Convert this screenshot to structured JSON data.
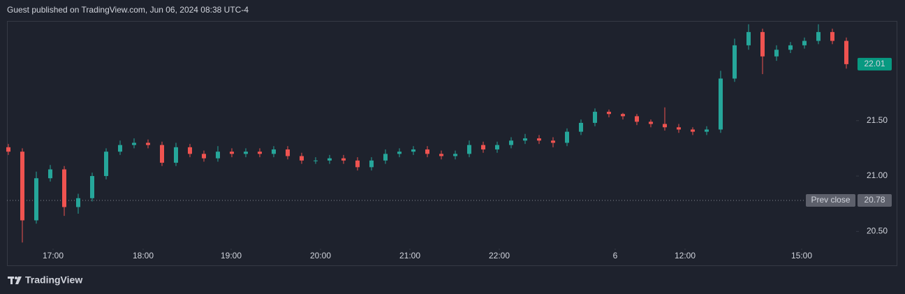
{
  "chart_data": {
    "type": "candlestick",
    "title": "Guest published on TradingView.com, Jun 06, 2024 08:38 UTC-4",
    "brand": "TradingView",
    "up_color": "#26a69a",
    "down_color": "#ef5350",
    "open": [
      21.26,
      21.22,
      20.6,
      20.98,
      21.06,
      20.72,
      20.8,
      21.0,
      21.22,
      21.28,
      21.3,
      21.28,
      21.12,
      21.26,
      21.2,
      21.16,
      21.22,
      21.2,
      21.22,
      21.2,
      21.24,
      21.18,
      21.14,
      21.14,
      21.16,
      21.14,
      21.08,
      21.14,
      21.2,
      21.22,
      21.24,
      21.2,
      21.18,
      21.2,
      21.28,
      21.24,
      21.28,
      21.32,
      21.34,
      21.32,
      21.3,
      21.4,
      21.48,
      21.58,
      21.56,
      21.54,
      21.49,
      21.47,
      21.44,
      21.42,
      21.4,
      21.42,
      21.88,
      22.18,
      22.3,
      22.08,
      22.14,
      22.18,
      22.22,
      22.3,
      22.22
    ],
    "high": [
      21.29,
      21.25,
      21.04,
      21.1,
      21.09,
      20.84,
      21.03,
      21.25,
      21.32,
      21.34,
      21.33,
      21.31,
      21.3,
      21.29,
      21.23,
      21.27,
      21.25,
      21.25,
      21.25,
      21.27,
      21.27,
      21.21,
      21.17,
      21.19,
      21.19,
      21.17,
      21.17,
      21.24,
      21.25,
      21.27,
      21.27,
      21.23,
      21.23,
      21.32,
      21.31,
      21.31,
      21.35,
      21.38,
      21.37,
      21.35,
      21.43,
      21.51,
      21.61,
      21.6,
      21.57,
      21.56,
      21.51,
      21.62,
      21.47,
      21.44,
      21.45,
      21.95,
      22.24,
      22.37,
      22.33,
      22.18,
      22.21,
      22.25,
      22.37,
      22.33,
      22.25
    ],
    "low": [
      21.19,
      20.4,
      20.57,
      20.95,
      20.64,
      20.66,
      20.77,
      20.97,
      21.19,
      21.25,
      21.25,
      21.09,
      21.09,
      21.17,
      21.13,
      21.13,
      21.17,
      21.17,
      21.17,
      21.17,
      21.15,
      21.11,
      21.11,
      21.11,
      21.11,
      21.05,
      21.05,
      21.11,
      21.17,
      21.19,
      21.17,
      21.15,
      21.15,
      21.17,
      21.21,
      21.21,
      21.25,
      21.29,
      21.29,
      21.26,
      21.27,
      21.37,
      21.45,
      21.53,
      21.51,
      21.46,
      21.44,
      21.41,
      21.39,
      21.37,
      21.37,
      21.39,
      21.85,
      22.14,
      21.92,
      22.04,
      22.11,
      22.15,
      22.19,
      22.19,
      21.97
    ],
    "close": [
      21.22,
      20.6,
      20.98,
      21.06,
      20.72,
      20.8,
      21.0,
      21.22,
      21.28,
      21.3,
      21.28,
      21.12,
      21.26,
      21.2,
      21.16,
      21.22,
      21.2,
      21.22,
      21.2,
      21.24,
      21.18,
      21.14,
      21.14,
      21.16,
      21.14,
      21.08,
      21.14,
      21.2,
      21.22,
      21.24,
      21.2,
      21.18,
      21.2,
      21.28,
      21.24,
      21.28,
      21.32,
      21.34,
      21.32,
      21.3,
      21.4,
      21.48,
      21.58,
      21.56,
      21.54,
      21.49,
      21.47,
      21.44,
      21.42,
      21.4,
      21.42,
      21.88,
      22.18,
      22.3,
      22.08,
      22.14,
      22.18,
      22.22,
      22.3,
      22.22,
      22.01
    ],
    "xlim": [
      -0.1,
      60.6
    ],
    "xticks": [
      {
        "value": 3.2,
        "label": "17:00"
      },
      {
        "value": 9.65,
        "label": "18:00"
      },
      {
        "value": 15.95,
        "label": "19:00"
      },
      {
        "value": 22.35,
        "label": "20:00"
      },
      {
        "value": 28.75,
        "label": "21:00"
      },
      {
        "value": 35.15,
        "label": "22:00"
      },
      {
        "value": 43.45,
        "label": "6"
      },
      {
        "value": 48.45,
        "label": "12:00"
      },
      {
        "value": 56.8,
        "label": "15:00"
      }
    ],
    "ylim": [
      20.37,
      22.4
    ],
    "yticks": [
      {
        "value": 20.5,
        "label": "20.50"
      },
      {
        "value": 21.0,
        "label": "21.00"
      },
      {
        "value": 21.5,
        "label": "21.50"
      }
    ],
    "last_price": 22.01,
    "prev_close": {
      "label": "Prev close",
      "value": 20.78
    }
  }
}
